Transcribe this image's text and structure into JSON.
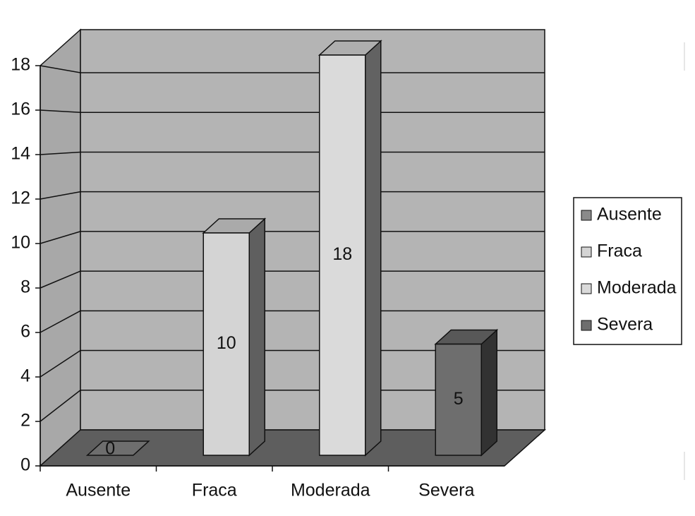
{
  "chart_data": {
    "type": "bar3d",
    "categories": [
      "Ausente",
      "Fraca",
      "Moderada",
      "Severa"
    ],
    "values": [
      0,
      10,
      18,
      5
    ],
    "colors": [
      "#8a8a8a",
      "#d4d4d4",
      "#dadada",
      "#6e6e6e"
    ],
    "ylim": [
      0,
      18
    ],
    "yticks": [
      0,
      2,
      4,
      6,
      8,
      10,
      12,
      14,
      16,
      18
    ],
    "grid": true,
    "legend": "right"
  }
}
